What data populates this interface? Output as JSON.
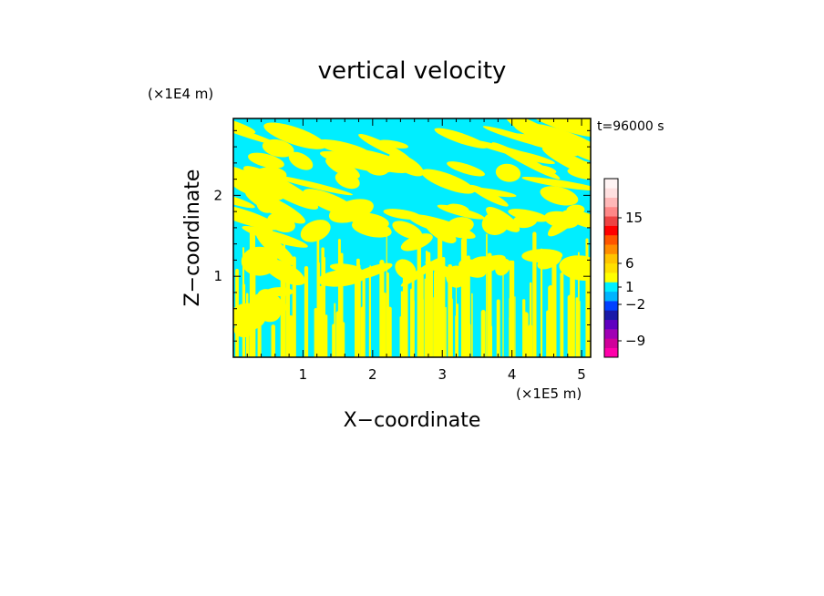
{
  "chart_data": {
    "type": "heatmap",
    "title": "vertical velocity",
    "xlabel": "X−coordinate",
    "ylabel": "Z−coordinate",
    "x_unit": "(×1E5 m)",
    "y_unit": "(×1E4 m)",
    "time_label": "t=96000 s",
    "xlim": [
      0,
      5.13
    ],
    "ylim": [
      0,
      2.95
    ],
    "x_ticks": [
      1,
      2,
      3,
      4,
      5
    ],
    "y_ticks": [
      1,
      2
    ],
    "x_tick_labels": [
      "1",
      "2",
      "3",
      "4",
      "5"
    ],
    "y_tick_labels": [
      "1",
      "2"
    ],
    "colorbar": {
      "colors": [
        "#ff00aa",
        "#d0009a",
        "#a000b4",
        "#6000c0",
        "#1a1aa8",
        "#0040ff",
        "#00b4ff",
        "#00f0ff",
        "#ffff00",
        "#ffe000",
        "#ffc400",
        "#ff8c00",
        "#ff5500",
        "#ff0000",
        "#ee4444",
        "#ff8888",
        "#ffb8b8",
        "#ffe0e0",
        "#fff4f4"
      ],
      "labels": [
        {
          "text": "−9",
          "level": -9
        },
        {
          "text": "−2",
          "level": -2
        },
        {
          "text": "1",
          "level": 1
        },
        {
          "text": "6",
          "level": 6
        },
        {
          "text": "15",
          "level": 15
        }
      ]
    },
    "field_colors": {
      "negative": "#00eeff",
      "positive": "#ffff00"
    }
  }
}
